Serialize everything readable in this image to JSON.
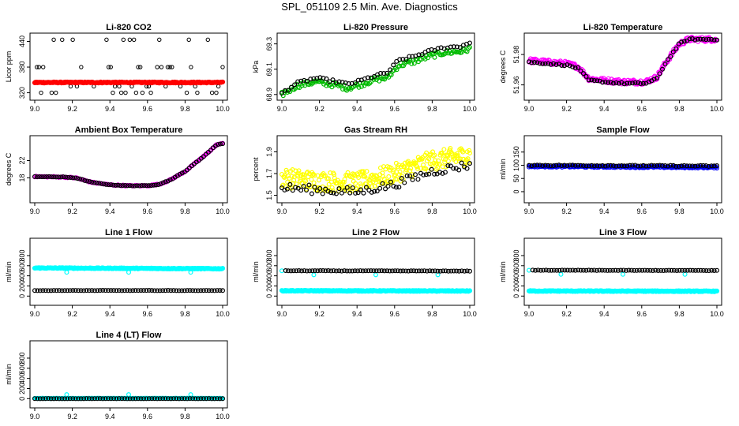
{
  "title": "SPL_051109  2.5 Min. Ave. Diagnostics",
  "chart_data": [
    {
      "type": "scatter",
      "title": "Li-820 CO2",
      "ylabel": "Licor ppm",
      "xlim": [
        9.0,
        10.0
      ],
      "ylim": [
        310,
        452
      ],
      "xticks": [
        "9.0",
        "9.2",
        "9.4",
        "9.6",
        "9.8",
        "10.0"
      ],
      "yticks": [
        "320",
        "380",
        "440"
      ],
      "series": [
        {
          "color": "#000000",
          "style": "circles",
          "levels": [
            320,
            335,
            380,
            444
          ],
          "gen": "discrete"
        },
        {
          "color": "#ff0000",
          "style": "band",
          "x": [
            9.0,
            10.0
          ],
          "y": [
            344,
            344
          ],
          "noise": 1.2
        }
      ]
    },
    {
      "type": "scatter",
      "title": "Li-820 Pressure",
      "ylabel": "kPa",
      "xlim": [
        9.0,
        10.0
      ],
      "ylim": [
        68.88,
        69.36
      ],
      "xticks": [
        "9.0",
        "9.2",
        "9.4",
        "9.6",
        "9.8",
        "10.0"
      ],
      "yticks": [
        "68.9",
        "69.1",
        "69.3"
      ],
      "series": [
        {
          "color": "#00bb00",
          "style": "circles",
          "x": [
            9.0,
            9.08,
            9.18,
            9.3,
            9.35,
            9.42,
            9.5,
            9.56,
            9.62,
            9.7,
            9.78,
            9.86,
            9.95,
            10.0
          ],
          "y": [
            68.9,
            68.97,
            69.0,
            68.97,
            68.95,
            68.98,
            69.02,
            69.03,
            69.13,
            69.16,
            69.2,
            69.23,
            69.24,
            69.26
          ],
          "noise": 0.02,
          "n": 140
        },
        {
          "color": "#000000",
          "style": "circles",
          "x": [
            9.0,
            9.08,
            9.18,
            9.3,
            9.35,
            9.42,
            9.5,
            9.56,
            9.62,
            9.7,
            9.78,
            9.86,
            9.95,
            10.0
          ],
          "y": [
            68.91,
            68.99,
            69.03,
            69.0,
            68.98,
            69.01,
            69.05,
            69.07,
            69.17,
            69.2,
            69.24,
            69.27,
            69.28,
            69.31
          ],
          "noise": 0.01,
          "n": 60
        }
      ]
    },
    {
      "type": "scatter",
      "title": "Li-820 Temperature",
      "ylabel": "degrees C",
      "xlim": [
        9.0,
        10.0
      ],
      "ylim": [
        51.952,
        51.992
      ],
      "xticks": [
        "9.0",
        "9.2",
        "9.4",
        "9.6",
        "9.8",
        "10.0"
      ],
      "yticks": [
        "51.96",
        "51.98"
      ],
      "series": [
        {
          "color": "#ff00ff",
          "style": "circles",
          "x": [
            9.0,
            9.1,
            9.2,
            9.26,
            9.32,
            9.4,
            9.5,
            9.62,
            9.68,
            9.73,
            9.8,
            9.85,
            10.0
          ],
          "y": [
            51.976,
            51.975,
            51.974,
            51.972,
            51.964,
            51.963,
            51.962,
            51.962,
            51.965,
            51.975,
            51.987,
            51.99,
            51.99
          ],
          "noise": 0.0016,
          "n": 240
        },
        {
          "color": "#000000",
          "style": "circles",
          "x": [
            9.0,
            9.1,
            9.2,
            9.26,
            9.32,
            9.4,
            9.5,
            9.62,
            9.68,
            9.73,
            9.8,
            9.85,
            10.0
          ],
          "y": [
            51.975,
            51.974,
            51.973,
            51.971,
            51.963,
            51.962,
            51.961,
            51.961,
            51.964,
            51.975,
            51.987,
            51.99,
            51.99
          ],
          "noise": 0.0005,
          "n": 70
        }
      ]
    },
    {
      "type": "scatter",
      "title": "Ambient Box Temperature",
      "ylabel": "degrees C",
      "xlim": [
        9.0,
        10.0
      ],
      "ylim": [
        13.0,
        27.0
      ],
      "xticks": [
        "9.0",
        "9.2",
        "9.4",
        "9.6",
        "9.8",
        "10.0"
      ],
      "yticks": [
        "18",
        "22"
      ],
      "series": [
        {
          "color": "#ff00ff",
          "style": "circles",
          "x": [
            9.0,
            9.15,
            9.22,
            9.3,
            9.4,
            9.5,
            9.6,
            9.66,
            9.72,
            9.8,
            9.9,
            9.97,
            10.0
          ],
          "y": [
            18.3,
            18.2,
            18.0,
            17.0,
            16.4,
            16.2,
            16.2,
            16.5,
            17.5,
            19.5,
            23.0,
            25.7,
            25.9
          ],
          "noise": 0.12,
          "n": 150
        },
        {
          "color": "#000000",
          "style": "circles",
          "x": [
            9.0,
            9.15,
            9.22,
            9.3,
            9.4,
            9.5,
            9.6,
            9.66,
            9.72,
            9.8,
            9.9,
            9.97,
            10.0
          ],
          "y": [
            18.3,
            18.2,
            18.0,
            17.0,
            16.4,
            16.2,
            16.2,
            16.5,
            17.5,
            19.5,
            23.0,
            25.7,
            25.9
          ],
          "noise": 0.05,
          "n": 80
        }
      ]
    },
    {
      "type": "scatter",
      "title": "Gas Stream RH",
      "ylabel": "percent",
      "xlim": [
        9.0,
        10.0
      ],
      "ylim": [
        1.46,
        2.02
      ],
      "xticks": [
        "9.0",
        "9.2",
        "9.4",
        "9.6",
        "9.8",
        "10.0"
      ],
      "yticks": [
        "1.5",
        "1.7",
        "1.9"
      ],
      "series": [
        {
          "color": "#ffff00",
          "style": "circles",
          "x": [
            9.0,
            9.2,
            9.4,
            9.6,
            9.8,
            10.0
          ],
          "y": [
            1.66,
            1.63,
            1.62,
            1.7,
            1.82,
            1.87
          ],
          "noise": 0.09,
          "n": 300
        },
        {
          "color": "#000000",
          "style": "circles",
          "x": [
            9.0,
            9.2,
            9.4,
            9.6,
            9.8,
            10.0
          ],
          "y": [
            1.57,
            1.55,
            1.53,
            1.6,
            1.72,
            1.78
          ],
          "noise": 0.04,
          "n": 70
        }
      ]
    },
    {
      "type": "scatter",
      "title": "Sample Flow",
      "ylabel": "ml/min",
      "xlim": [
        9.0,
        10.0
      ],
      "ylim": [
        -30,
        200
      ],
      "xticks": [
        "9.0",
        "9.2",
        "9.4",
        "9.6",
        "9.8",
        "10.0"
      ],
      "yticks": [
        "0",
        "50",
        "100",
        "150"
      ],
      "series": [
        {
          "color": "#0000ff",
          "style": "circles",
          "x": [
            9.0,
            10.0
          ],
          "y": [
            96,
            92
          ],
          "noise": 3,
          "n": 200
        },
        {
          "color": "#000000",
          "style": "circles",
          "x": [
            9.0,
            10.0
          ],
          "y": [
            100,
            97
          ],
          "noise": 2,
          "n": 70
        }
      ]
    },
    {
      "type": "scatter",
      "title": "Line 1 Flow",
      "ylabel": "ml/min",
      "xlim": [
        9.0,
        10.0
      ],
      "ylim": [
        -120,
        1080
      ],
      "xticks": [
        "9.0",
        "9.2",
        "9.4",
        "9.6",
        "9.8",
        "10.0"
      ],
      "yticks": [
        "0",
        "200",
        "400",
        "600",
        "800"
      ],
      "series": [
        {
          "color": "#00ffff",
          "style": "band",
          "x": [
            9.0,
            10.0
          ],
          "y": [
            555,
            540
          ],
          "noise": 8
        },
        {
          "color": "#00ffff",
          "style": "circles",
          "x": [
            9.17,
            9.5,
            9.83
          ],
          "y": [
            470,
            470,
            470
          ],
          "noise": 0,
          "n": 3,
          "exact": true
        },
        {
          "color": "#000000",
          "style": "circles",
          "x": [
            9.0,
            10.0
          ],
          "y": [
            110,
            110
          ],
          "noise": 3,
          "n": 70
        }
      ]
    },
    {
      "type": "scatter",
      "title": "Line 2 Flow",
      "ylabel": "ml/min",
      "xlim": [
        9.0,
        10.0
      ],
      "ylim": [
        -120,
        1080
      ],
      "xticks": [
        "9.0",
        "9.2",
        "9.4",
        "9.6",
        "9.8",
        "10.0"
      ],
      "yticks": [
        "0",
        "200",
        "400",
        "600",
        "800"
      ],
      "series": [
        {
          "color": "#00ffff",
          "style": "band",
          "x": [
            9.0,
            10.0
          ],
          "y": [
            105,
            100
          ],
          "noise": 8
        },
        {
          "color": "#00ffff",
          "style": "circles",
          "x": [
            9.0,
            9.17,
            9.5,
            9.83
          ],
          "y": [
            500,
            420,
            420,
            420
          ],
          "noise": 0,
          "n": 4,
          "exact": true
        },
        {
          "color": "#000000",
          "style": "circles",
          "x": [
            9.02,
            10.0
          ],
          "y": [
            500,
            495
          ],
          "noise": 4,
          "n": 70
        }
      ]
    },
    {
      "type": "scatter",
      "title": "Line 3 Flow",
      "ylabel": "ml/min",
      "xlim": [
        9.0,
        10.0
      ],
      "ylim": [
        -120,
        1080
      ],
      "xticks": [
        "9.0",
        "9.2",
        "9.4",
        "9.6",
        "9.8",
        "10.0"
      ],
      "yticks": [
        "0",
        "200",
        "400",
        "600",
        "800"
      ],
      "series": [
        {
          "color": "#00ffff",
          "style": "band",
          "x": [
            9.0,
            10.0
          ],
          "y": [
            100,
            95
          ],
          "noise": 8
        },
        {
          "color": "#00ffff",
          "style": "circles",
          "x": [
            9.0,
            9.17,
            9.5,
            9.83
          ],
          "y": [
            510,
            430,
            430,
            430
          ],
          "noise": 0,
          "n": 4,
          "exact": true
        },
        {
          "color": "#000000",
          "style": "circles",
          "x": [
            9.02,
            10.0
          ],
          "y": [
            510,
            505
          ],
          "noise": 4,
          "n": 70
        }
      ]
    },
    {
      "type": "scatter",
      "title": "Line 4 (LT) Flow",
      "ylabel": "ml/min",
      "xlim": [
        9.0,
        10.0
      ],
      "ylim": [
        -120,
        1080
      ],
      "xticks": [
        "9.0",
        "9.2",
        "9.4",
        "9.6",
        "9.8",
        "10.0"
      ],
      "yticks": [
        "0",
        "200",
        "400",
        "600",
        "800"
      ],
      "series": [
        {
          "color": "#00ffff",
          "style": "band",
          "x": [
            9.0,
            10.0
          ],
          "y": [
            5,
            5
          ],
          "noise": 3
        },
        {
          "color": "#00ffff",
          "style": "circles",
          "x": [
            9.17,
            9.5,
            9.83
          ],
          "y": [
            80,
            80,
            80
          ],
          "noise": 0,
          "n": 3,
          "exact": true
        },
        {
          "color": "#000000",
          "style": "circles",
          "x": [
            9.0,
            10.0
          ],
          "y": [
            0,
            0
          ],
          "noise": 2,
          "n": 70
        }
      ]
    }
  ]
}
